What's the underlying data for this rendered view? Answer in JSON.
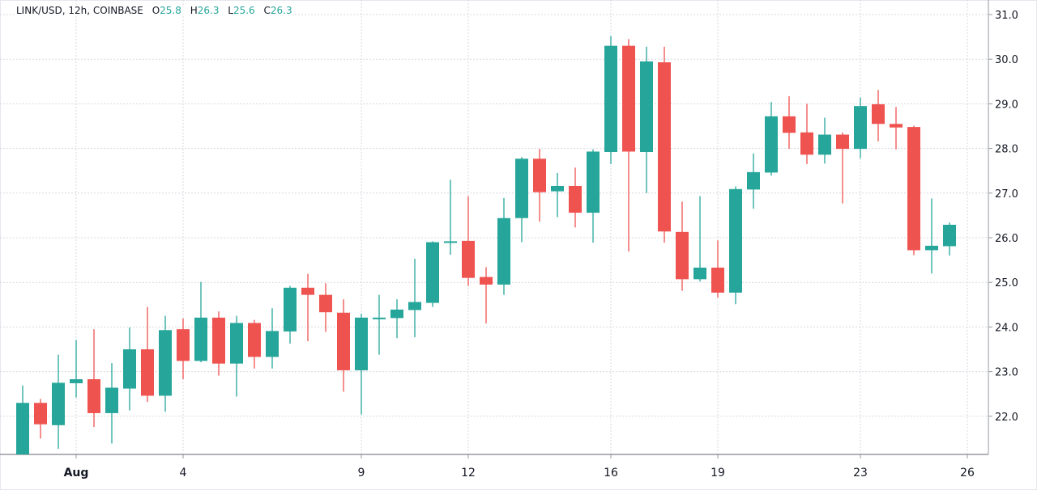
{
  "header": {
    "symbol": "LINK/USD, 12h, COINBASE",
    "o_label": "O",
    "o_value": "25.8",
    "h_label": "H",
    "h_value": "26.3",
    "l_label": "L",
    "l_value": "25.6",
    "c_label": "C",
    "c_value": "26.3"
  },
  "colors": {
    "up": "#26a69a",
    "down": "#ef5350",
    "grid": "#d8dae0",
    "axis": "#9598a1"
  },
  "chart_data": {
    "type": "candlestick",
    "title": "LINK/USD, 12h, COINBASE",
    "xlabel": "",
    "ylabel": "",
    "ylim": [
      21.15,
      31.33
    ],
    "grid": true,
    "yticks": [
      "31.0",
      "30.0",
      "29.0",
      "28.0",
      "27.0",
      "26.0",
      "25.0",
      "24.0",
      "23.0",
      "22.0"
    ],
    "xticks": [
      {
        "label": "Aug",
        "index": 3
      },
      {
        "label": "4",
        "index": 9
      },
      {
        "label": "9",
        "index": 19
      },
      {
        "label": "12",
        "index": 25
      },
      {
        "label": "16",
        "index": 33
      },
      {
        "label": "19",
        "index": 39
      },
      {
        "label": "23",
        "index": 47
      },
      {
        "label": "26",
        "index": 53
      }
    ],
    "candles": [
      [
        21.1,
        22.69,
        21.0,
        22.3
      ],
      [
        22.3,
        22.39,
        21.5,
        21.82
      ],
      [
        21.8,
        23.38,
        21.27,
        22.75
      ],
      [
        22.74,
        23.71,
        22.42,
        22.83
      ],
      [
        22.83,
        23.95,
        21.76,
        22.07
      ],
      [
        22.07,
        23.19,
        21.39,
        22.64
      ],
      [
        22.62,
        23.99,
        22.13,
        23.5
      ],
      [
        23.5,
        24.45,
        22.32,
        22.46
      ],
      [
        22.46,
        24.25,
        22.1,
        23.93
      ],
      [
        23.95,
        24.19,
        22.83,
        23.24
      ],
      [
        23.24,
        25.01,
        23.21,
        24.21
      ],
      [
        24.21,
        24.35,
        22.91,
        23.18
      ],
      [
        23.18,
        24.25,
        22.44,
        24.09
      ],
      [
        24.09,
        24.16,
        23.07,
        23.33
      ],
      [
        23.33,
        24.42,
        23.07,
        23.91
      ],
      [
        23.9,
        24.92,
        23.63,
        24.88
      ],
      [
        24.88,
        25.19,
        23.68,
        24.72
      ],
      [
        24.72,
        24.98,
        23.89,
        24.33
      ],
      [
        24.32,
        24.62,
        22.55,
        23.03
      ],
      [
        23.03,
        24.3,
        22.04,
        24.21
      ],
      [
        24.2,
        24.72,
        23.38,
        24.21
      ],
      [
        24.2,
        24.62,
        23.75,
        24.39
      ],
      [
        24.38,
        25.53,
        23.77,
        24.56
      ],
      [
        24.54,
        25.92,
        24.45,
        25.9
      ],
      [
        25.9,
        27.3,
        25.62,
        25.92
      ],
      [
        25.93,
        26.93,
        24.92,
        25.1
      ],
      [
        25.12,
        25.34,
        24.08,
        24.95
      ],
      [
        24.95,
        26.89,
        24.72,
        26.44
      ],
      [
        26.44,
        27.81,
        25.9,
        27.77
      ],
      [
        27.77,
        27.99,
        26.36,
        27.02
      ],
      [
        27.04,
        27.45,
        26.46,
        27.16
      ],
      [
        27.16,
        27.57,
        26.23,
        26.56
      ],
      [
        26.56,
        27.98,
        25.89,
        27.93
      ],
      [
        27.92,
        30.52,
        27.65,
        30.3
      ],
      [
        30.3,
        30.45,
        25.69,
        27.93
      ],
      [
        27.92,
        30.28,
        27.0,
        29.95
      ],
      [
        29.93,
        30.28,
        25.89,
        26.14
      ],
      [
        26.13,
        26.81,
        24.81,
        25.07
      ],
      [
        25.07,
        26.93,
        25.02,
        25.33
      ],
      [
        25.33,
        25.94,
        24.66,
        24.77
      ],
      [
        24.77,
        27.15,
        24.51,
        27.09
      ],
      [
        27.08,
        27.89,
        26.65,
        27.47
      ],
      [
        27.46,
        29.04,
        27.39,
        28.72
      ],
      [
        28.72,
        29.17,
        27.99,
        28.35
      ],
      [
        28.36,
        29.0,
        27.65,
        27.86
      ],
      [
        27.86,
        28.69,
        27.66,
        28.31
      ],
      [
        28.31,
        28.36,
        26.77,
        27.99
      ],
      [
        27.99,
        29.14,
        27.78,
        28.95
      ],
      [
        28.99,
        29.31,
        28.16,
        28.55
      ],
      [
        28.55,
        28.93,
        27.98,
        28.47
      ],
      [
        28.48,
        28.51,
        25.61,
        25.72
      ],
      [
        25.72,
        26.88,
        25.2,
        25.82
      ],
      [
        25.81,
        26.34,
        25.6,
        26.29
      ]
    ],
    "candle_format": [
      "open",
      "high",
      "low",
      "close"
    ]
  }
}
